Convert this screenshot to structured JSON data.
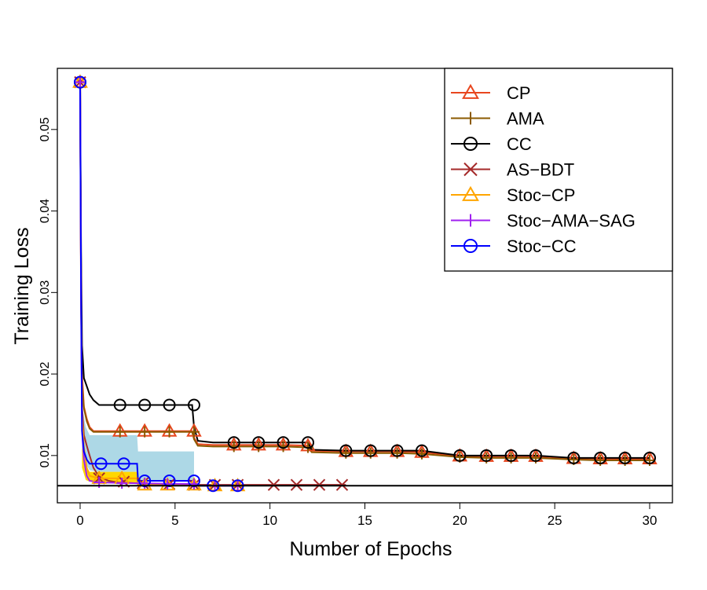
{
  "chart_data": {
    "type": "line",
    "title": "",
    "xlabel": "Number of Epochs",
    "ylabel": "Training Loss",
    "xlim": [
      -1.2,
      31.2
    ],
    "ylim": [
      0.0042,
      0.0575
    ],
    "x_ticks": [
      0,
      5,
      10,
      15,
      20,
      25,
      30
    ],
    "y_ticks": [
      0.01,
      0.02,
      0.03,
      0.04,
      0.05
    ],
    "x_tick_labels": [
      "0",
      "5",
      "10",
      "15",
      "20",
      "25",
      "30"
    ],
    "y_tick_labels": [
      "0.01",
      "0.02",
      "0.03",
      "0.04",
      "0.05"
    ],
    "grid": false,
    "legend_position": "top-right",
    "reference_line": 0.0063,
    "series": [
      {
        "name": "CP",
        "color": "#e8461e",
        "marker": "triangle",
        "x": [
          0,
          0.05,
          0.1,
          0.2,
          0.35,
          0.5,
          0.7,
          1.0,
          2.1,
          3.4,
          4.7,
          5.9,
          6.0,
          6.2,
          7.0,
          8.1,
          9.4,
          10.7,
          12.0,
          12.2,
          14.0,
          15.3,
          16.7,
          18.0,
          20.0,
          21.4,
          22.7,
          24.0,
          26.0,
          27.4,
          28.7,
          30.0
        ],
        "y": [
          0.0558,
          0.03,
          0.02,
          0.016,
          0.0145,
          0.0135,
          0.013,
          0.013,
          0.013,
          0.013,
          0.013,
          0.013,
          0.0122,
          0.0114,
          0.0113,
          0.0113,
          0.0113,
          0.0113,
          0.0112,
          0.0106,
          0.0105,
          0.0105,
          0.0105,
          0.0104,
          0.00995,
          0.0099,
          0.0099,
          0.0099,
          0.00965,
          0.0096,
          0.0096,
          0.0096
        ],
        "marker_x": [
          0,
          2.1,
          3.4,
          4.7,
          6.0,
          8.1,
          9.4,
          10.7,
          12.0,
          14.0,
          15.3,
          16.7,
          18.0,
          20.0,
          21.4,
          22.7,
          24.0,
          26.0,
          27.4,
          28.7,
          30.0
        ],
        "marker_y": [
          0.0558,
          0.013,
          0.013,
          0.013,
          0.013,
          0.0113,
          0.0113,
          0.0113,
          0.0112,
          0.0105,
          0.0105,
          0.0105,
          0.0104,
          0.00995,
          0.0099,
          0.0099,
          0.0099,
          0.00965,
          0.0096,
          0.0096,
          0.0096
        ]
      },
      {
        "name": "AMA",
        "color": "#8b5a00",
        "marker": "plus",
        "x": [
          0,
          0.05,
          0.1,
          0.2,
          0.35,
          0.5,
          0.7,
          1.0,
          2.1,
          3.4,
          4.7,
          5.9,
          6.0,
          6.2,
          7.0,
          8.1,
          9.4,
          10.7,
          12.0,
          12.2,
          14.0,
          15.3,
          16.7,
          18.0,
          20.0,
          21.4,
          22.7,
          24.0,
          26.0,
          27.4,
          28.7,
          30.0
        ],
        "y": [
          0.0558,
          0.028,
          0.019,
          0.0158,
          0.0142,
          0.0133,
          0.0129,
          0.0129,
          0.0129,
          0.0129,
          0.0129,
          0.0129,
          0.012,
          0.0112,
          0.0111,
          0.0111,
          0.0111,
          0.0111,
          0.011,
          0.0104,
          0.0103,
          0.0103,
          0.0103,
          0.0102,
          0.0098,
          0.0097,
          0.0097,
          0.0097,
          0.0095,
          0.0094,
          0.0094,
          0.0094
        ],
        "marker_x": [
          0,
          2.1,
          3.4,
          4.7,
          6.0,
          8.1,
          9.4,
          10.7,
          12.0,
          14.0,
          15.3,
          16.7,
          18.0,
          20.0,
          21.4,
          22.7,
          24.0,
          26.0,
          27.4,
          28.7,
          30.0
        ],
        "marker_y": [
          0.0558,
          0.0129,
          0.0129,
          0.0129,
          0.0129,
          0.0111,
          0.0111,
          0.0111,
          0.011,
          0.0103,
          0.0103,
          0.0103,
          0.0102,
          0.0098,
          0.0097,
          0.0097,
          0.0097,
          0.0095,
          0.0094,
          0.0094,
          0.0094
        ]
      },
      {
        "name": "CC",
        "color": "#000000",
        "marker": "circle",
        "x": [
          0,
          0.05,
          0.1,
          0.2,
          0.35,
          0.5,
          0.7,
          1.0,
          2.1,
          3.4,
          4.7,
          5.9,
          6.0,
          6.2,
          7.0,
          8.1,
          9.4,
          10.7,
          12.0,
          12.2,
          14.0,
          15.3,
          16.7,
          18.0,
          20.0,
          21.4,
          22.7,
          24.0,
          26.0,
          27.4,
          28.7,
          30.0
        ],
        "y": [
          0.0558,
          0.035,
          0.0235,
          0.0195,
          0.0185,
          0.0175,
          0.0168,
          0.0162,
          0.0162,
          0.0162,
          0.0162,
          0.0162,
          0.0135,
          0.0118,
          0.0116,
          0.0116,
          0.0116,
          0.0116,
          0.0116,
          0.0107,
          0.0106,
          0.0106,
          0.0106,
          0.0106,
          0.01,
          0.01,
          0.01,
          0.01,
          0.0097,
          0.0097,
          0.0097,
          0.0097
        ],
        "marker_x": [
          0,
          2.1,
          3.4,
          4.7,
          6.0,
          8.1,
          9.4,
          10.7,
          12.0,
          14.0,
          15.3,
          16.7,
          18.0,
          20.0,
          21.4,
          22.7,
          24.0,
          26.0,
          27.4,
          28.7,
          30.0
        ],
        "marker_y": [
          0.0558,
          0.0162,
          0.0162,
          0.0162,
          0.0162,
          0.0116,
          0.0116,
          0.0116,
          0.0116,
          0.0106,
          0.0106,
          0.0106,
          0.0106,
          0.01,
          0.01,
          0.01,
          0.01,
          0.0097,
          0.0097,
          0.0097,
          0.0097
        ]
      },
      {
        "name": "AS−BDT",
        "color": "#a52a2a",
        "marker": "cross",
        "x": [
          0,
          0.05,
          0.1,
          0.2,
          0.35,
          0.5,
          0.7,
          1.0,
          1.5,
          2.0,
          3.0,
          4.0,
          6.0,
          8.0,
          10.0,
          12.0,
          14.0
        ],
        "y": [
          0.0558,
          0.03,
          0.016,
          0.0125,
          0.0112,
          0.01,
          0.0085,
          0.0074,
          0.0069,
          0.0067,
          0.0066,
          0.0065,
          0.0064,
          0.0064,
          0.0064,
          0.0064,
          0.0064
        ],
        "marker_x": [
          0,
          1.0,
          2.3,
          3.3,
          4.7,
          6.0,
          7.1,
          8.3,
          10.2,
          11.4,
          12.6,
          13.8
        ],
        "marker_y": [
          0.0558,
          0.0072,
          0.0068,
          0.0066,
          0.0065,
          0.0064,
          0.0064,
          0.0064,
          0.0064,
          0.0064,
          0.0064,
          0.0064
        ]
      },
      {
        "name": "Stoc−CP",
        "color": "#ffa500",
        "marker": "triangle",
        "x": [
          0,
          0.05,
          0.1,
          0.2,
          0.35,
          0.5,
          1.0,
          3.0,
          3.05,
          6.0,
          6.05,
          7.0,
          8.3
        ],
        "y": [
          0.0558,
          0.03,
          0.015,
          0.011,
          0.0085,
          0.0075,
          0.0072,
          0.0072,
          0.0064,
          0.0064,
          0.0063,
          0.0063,
          0.0063
        ],
        "marker_x": [
          0,
          1.0,
          2.2,
          3.4,
          4.6,
          6.0,
          7.1,
          8.3
        ],
        "marker_y": [
          0.0558,
          0.0072,
          0.0072,
          0.0064,
          0.0064,
          0.0064,
          0.0063,
          0.0063
        ]
      },
      {
        "name": "Stoc−AMA−SAG",
        "color": "#a020f0",
        "marker": "plus",
        "x": [
          0,
          0.05,
          0.1,
          0.2,
          0.35,
          0.5,
          1.0,
          3.0,
          6.0,
          6.05,
          7.0,
          8.3
        ],
        "y": [
          0.0558,
          0.028,
          0.013,
          0.0095,
          0.0075,
          0.0069,
          0.0067,
          0.0066,
          0.0065,
          0.0063,
          0.0063,
          0.0063
        ],
        "marker_x": [
          0,
          1.0,
          2.2,
          3.4,
          4.6,
          6.0,
          7.1,
          8.3
        ],
        "marker_y": [
          0.0558,
          0.0067,
          0.0066,
          0.0066,
          0.0065,
          0.0065,
          0.0063,
          0.0063
        ]
      },
      {
        "name": "Stoc−CC",
        "color": "#0000ff",
        "marker": "circle",
        "x": [
          0,
          0.05,
          0.1,
          0.2,
          0.35,
          0.5,
          1.0,
          3.0,
          3.05,
          6.0,
          6.05,
          7.0,
          8.3
        ],
        "y": [
          0.0558,
          0.03,
          0.013,
          0.0105,
          0.0095,
          0.009,
          0.009,
          0.009,
          0.0069,
          0.0069,
          0.0063,
          0.0063,
          0.0063
        ],
        "marker_x": [
          0,
          1.1,
          2.3,
          3.4,
          4.7,
          6.0,
          7.0,
          8.3
        ],
        "marker_y": [
          0.0558,
          0.009,
          0.009,
          0.0069,
          0.0069,
          0.0069,
          0.0063,
          0.0063
        ]
      }
    ],
    "bands": [
      {
        "color": "#add8e6",
        "x": [
          0.1,
          0.3,
          0.5,
          1.0,
          3.0,
          3.05,
          6.0
        ],
        "upper": [
          0.016,
          0.0135,
          0.0125,
          0.0125,
          0.0125,
          0.0105,
          0.0105
        ],
        "lower": [
          0.011,
          0.009,
          0.0082,
          0.008,
          0.008,
          0.0068,
          0.0068
        ]
      },
      {
        "color": "#ffd700",
        "x": [
          0.1,
          0.3,
          0.5,
          1.0,
          3.0
        ],
        "upper": [
          0.011,
          0.0088,
          0.008,
          0.008,
          0.008
        ],
        "lower": [
          0.0085,
          0.007,
          0.0068,
          0.0067,
          0.0067
        ]
      }
    ]
  }
}
